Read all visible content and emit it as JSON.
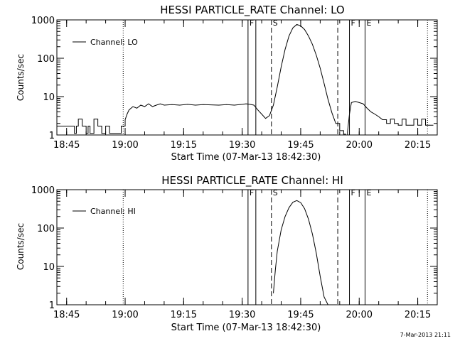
{
  "footer_timestamp": "7-Mar-2013 21:11",
  "chart_data": [
    {
      "type": "line",
      "title": "HESSI PARTICLE_RATE Channel: LO",
      "xlabel": "Start Time (07-Mar-13 18:42:30)",
      "ylabel": "Counts/sec",
      "y_scale": "log",
      "ylim": [
        1,
        1000
      ],
      "xlim_minutes_after_18_42_30": [
        0,
        97.5
      ],
      "y_ticks": [
        "1",
        "10",
        "100",
        "1000"
      ],
      "x_ticks": [
        "18:45",
        "19:00",
        "19:15",
        "19:30",
        "19:45",
        "20:00",
        "20:15"
      ],
      "legend": {
        "label": "Channel: LO",
        "placement": "top-left"
      },
      "markers": [
        {
          "time": "18:59.5",
          "style": "dotted",
          "label": ""
        },
        {
          "time": "19:31.5",
          "style": "solid",
          "label": "F"
        },
        {
          "time": "19:33.5",
          "style": "solid",
          "label": ""
        },
        {
          "time": "19:37.5",
          "style": "dashed",
          "label": "S"
        },
        {
          "time": "19:54.5",
          "style": "dashed",
          "label": ""
        },
        {
          "time": "19:57.5",
          "style": "solid",
          "label": "F"
        },
        {
          "time": "20:01.5",
          "style": "solid",
          "label": "E"
        },
        {
          "time": "20:17.5",
          "style": "dotted",
          "label": ""
        }
      ],
      "series": [
        {
          "name": "Channel: LO",
          "segments": [
            {
              "x": [
                "18:42.5",
                "18:43.5",
                "18:44.5",
                "18:45.5",
                "18:46.5",
                "18:47",
                "18:47.5",
                "18:48",
                "18:49",
                "18:50",
                "18:50.5",
                "18:51",
                "18:52",
                "18:53",
                "18:54",
                "18:55",
                "18:56",
                "18:57",
                "18:58",
                "18:59",
                "19:00",
                "19:00.5",
                "19:01",
                "19:02",
                "19:03",
                "19:04",
                "19:05",
                "19:06",
                "19:07",
                "19:08",
                "19:09",
                "19:10",
                "19:12",
                "19:14",
                "19:16",
                "19:18",
                "19:20",
                "19:22",
                "19:24",
                "19:26",
                "19:28",
                "19:30",
                "19:31",
                "19:32",
                "19:33",
                "19:34",
                "19:35",
                "19:36",
                "19:37",
                "19:38",
                "19:39",
                "19:40",
                "19:41",
                "19:42",
                "19:43",
                "19:44",
                "19:45",
                "19:46",
                "19:47",
                "19:48",
                "19:49",
                "19:50",
                "19:51",
                "19:52",
                "19:53",
                "19:54",
                "19:55",
                "19:56",
                "19:56.5",
                "19:57",
                "19:57.5",
                "19:58",
                "19:59",
                "20:00",
                "20:01",
                "20:02",
                "20:03",
                "20:04",
                "20:05",
                "20:06",
                "20:07",
                "20:08",
                "20:09",
                "20:10",
                "20:11",
                "20:12",
                "20:13",
                "20:14",
                "20:15",
                "20:16",
                "20:17",
                "20:18",
                "20:19"
              ],
              "y": [
                1.7,
                1.7,
                1.7,
                1.7,
                1.7,
                1.1,
                1.7,
                2.6,
                1.7,
                1.1,
                1.7,
                1.1,
                2.6,
                1.7,
                1.1,
                1.7,
                1.1,
                1.1,
                1.1,
                1.7,
                2.5,
                3.5,
                4.5,
                5.5,
                5.0,
                6.0,
                5.5,
                6.5,
                5.5,
                6.0,
                6.5,
                6.0,
                6.2,
                6.0,
                6.3,
                6.0,
                6.2,
                6.1,
                6.0,
                6.2,
                6.0,
                6.3,
                6.5,
                6.3,
                6.0,
                4.5,
                3.5,
                2.7,
                3.2,
                6.0,
                18,
                60,
                170,
                380,
                620,
                760,
                700,
                560,
                380,
                230,
                120,
                55,
                22,
                8.5,
                3.8,
                2.0,
                1.3,
                1.05,
                1.0,
                1.2,
                3.5,
                7.0,
                7.5,
                7.0,
                6.5,
                5.0,
                4.0,
                3.5,
                3.0,
                2.5,
                2.0,
                2.6,
                2.0,
                1.8,
                2.6,
                1.8,
                1.8,
                2.6,
                1.8,
                2.6,
                1.8,
                1.8,
                1.8
              ]
            }
          ]
        }
      ]
    },
    {
      "type": "line",
      "title": "HESSI PARTICLE_RATE Channel: HI",
      "xlabel": "Start Time (07-Mar-13 18:42:30)",
      "ylabel": "Counts/sec",
      "y_scale": "log",
      "ylim": [
        1,
        1000
      ],
      "xlim_minutes_after_18_42_30": [
        0,
        97.5
      ],
      "y_ticks": [
        "1",
        "10",
        "100",
        "1000"
      ],
      "x_ticks": [
        "18:45",
        "19:00",
        "19:15",
        "19:30",
        "19:45",
        "20:00",
        "20:15"
      ],
      "legend": {
        "label": "Channel: HI",
        "placement": "top-left"
      },
      "markers": [
        {
          "time": "18:59.5",
          "style": "dotted",
          "label": ""
        },
        {
          "time": "19:31.5",
          "style": "solid",
          "label": "F"
        },
        {
          "time": "19:33.5",
          "style": "solid",
          "label": ""
        },
        {
          "time": "19:37.5",
          "style": "dashed",
          "label": "S"
        },
        {
          "time": "19:54.5",
          "style": "dashed",
          "label": ""
        },
        {
          "time": "19:57.5",
          "style": "solid",
          "label": "F"
        },
        {
          "time": "20:01.5",
          "style": "solid",
          "label": "E"
        },
        {
          "time": "20:17.5",
          "style": "dotted",
          "label": ""
        }
      ],
      "series": [
        {
          "name": "Channel: HI",
          "segments": [
            {
              "x": [
                "19:38",
                "19:38.5",
                "19:39",
                "19:40",
                "19:41",
                "19:42",
                "19:43",
                "19:44",
                "19:45",
                "19:46",
                "19:47",
                "19:48",
                "19:49",
                "19:50",
                "19:51",
                "19:52"
              ],
              "y": [
                2.0,
                8,
                25,
                90,
                200,
                340,
                470,
                520,
                460,
                320,
                170,
                70,
                22,
                5.5,
                1.6,
                1.0
              ]
            }
          ]
        }
      ]
    }
  ]
}
